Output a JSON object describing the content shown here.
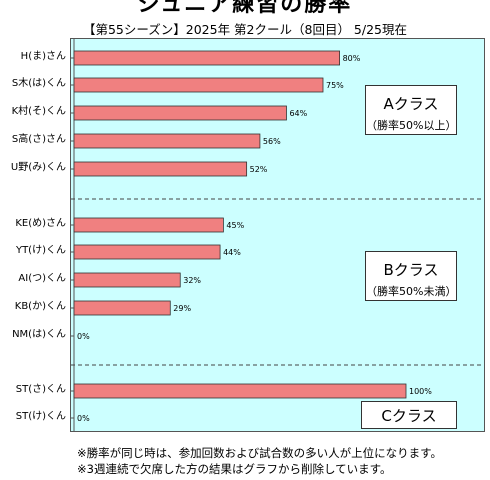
{
  "title": "ジュニア練習の勝率",
  "subtitle": "【第55シーズン】2025年 第2クール（8回目） 5/25現在",
  "chart_data": {
    "type": "bar",
    "orientation": "horizontal",
    "xlim": [
      0,
      100
    ],
    "bar_color": "#f08080",
    "grid": false,
    "groups": [
      {
        "class_label": "Aクラス",
        "class_note": "（勝率50%以上）",
        "categories": [
          "H(ま)さん",
          "S木(は)くん",
          "K村(そ)くん",
          "S高(さ)さん",
          "U野(み)くん"
        ],
        "values": [
          80,
          75,
          64,
          56,
          52
        ],
        "labels": [
          "80%",
          "75%",
          "64%",
          "56%",
          "52%"
        ]
      },
      {
        "class_label": "Bクラス",
        "class_note": "（勝率50%未満）",
        "categories": [
          "KE(め)さん",
          "YT(け)くん",
          "AI(つ)くん",
          "KB(か)くん",
          "NM(は)くん"
        ],
        "values": [
          45,
          44,
          32,
          29,
          0
        ],
        "labels": [
          "45%",
          "44%",
          "32%",
          "29%",
          "0%"
        ]
      },
      {
        "class_label": "Cクラス",
        "class_note": "",
        "categories": [
          "ST(さ)くん",
          "ST(け)くん"
        ],
        "values": [
          100,
          0
        ],
        "labels": [
          "100%",
          "0%"
        ]
      }
    ]
  },
  "notes": [
    "※勝率が同じ時は、参加回数および試合数の多い人が上位になります。",
    "※3週連続で欠席した方の結果はグラフから削除しています。"
  ]
}
